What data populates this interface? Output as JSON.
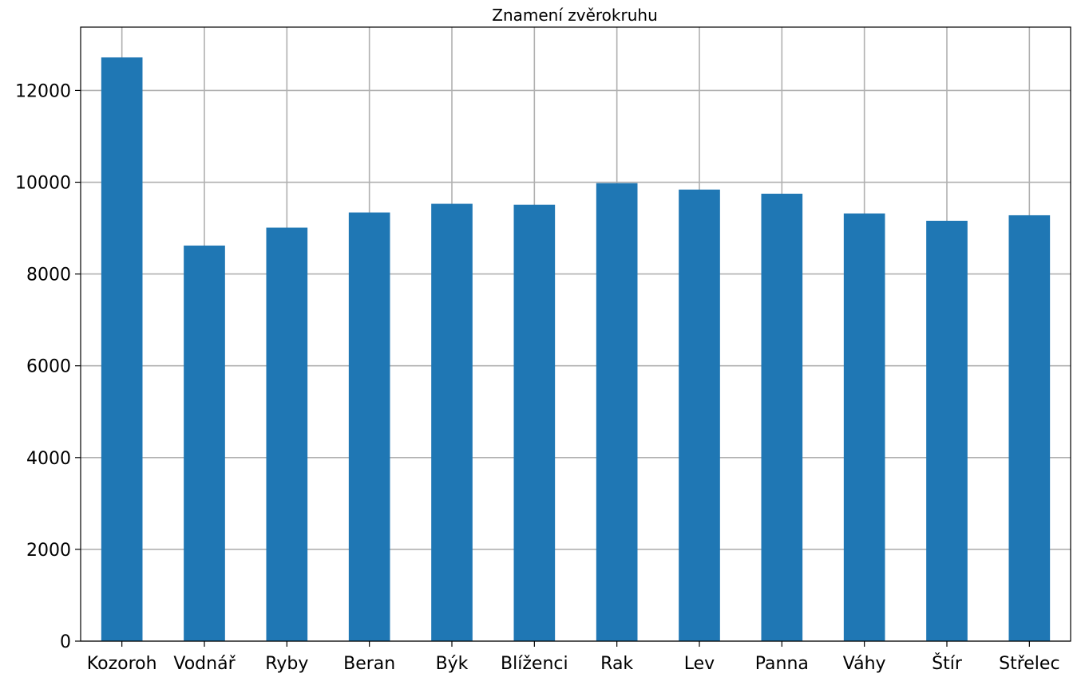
{
  "chart_data": {
    "type": "bar",
    "title": "Znamení zvěrokruhu",
    "xlabel": "",
    "ylabel": "",
    "categories": [
      "Kozoroh",
      "Vodnář",
      "Ryby",
      "Beran",
      "Býk",
      "Blíženci",
      "Rak",
      "Lev",
      "Panna",
      "Váhy",
      "Štír",
      "Střelec"
    ],
    "values": [
      12720,
      8620,
      9010,
      9340,
      9530,
      9510,
      9980,
      9840,
      9750,
      9320,
      9160,
      9280
    ],
    "ylim": [
      0,
      13380
    ],
    "yticks": [
      0,
      2000,
      4000,
      6000,
      8000,
      10000,
      12000
    ],
    "grid": true,
    "legend": "none",
    "colors": {
      "bar": "#1f77b4",
      "grid": "#b0b0b0",
      "axis": "#000000"
    }
  }
}
